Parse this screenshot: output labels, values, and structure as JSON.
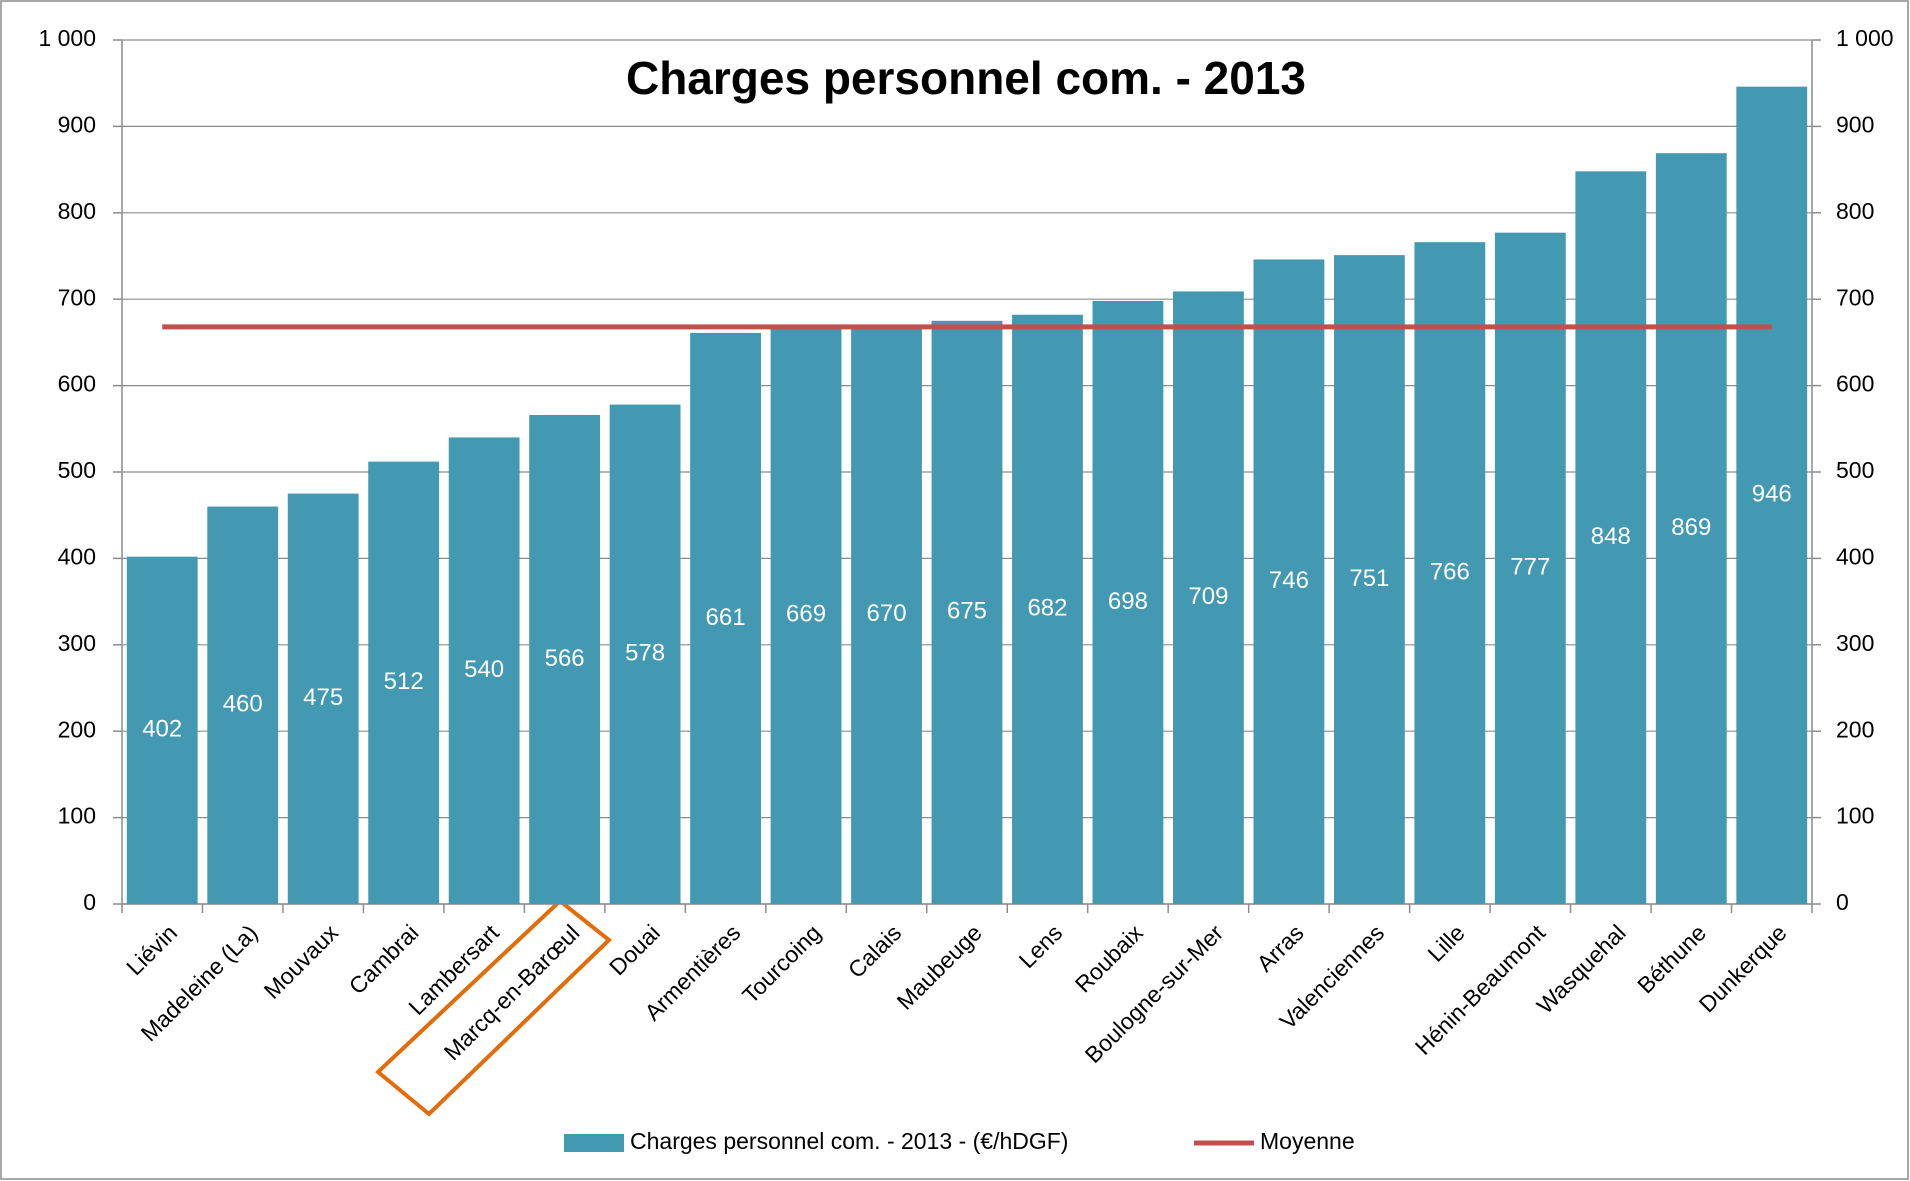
{
  "chart_data": {
    "type": "bar",
    "title": "Charges personnel com. - 2013",
    "categories": [
      "Liévin",
      "Madeleine (La)",
      "Mouvaux",
      "Cambrai",
      "Lambersart",
      "Marcq-en-Barœul",
      "Douai",
      "Armentières",
      "Tourcoing",
      "Calais",
      "Maubeuge",
      "Lens",
      "Roubaix",
      "Boulogne-sur-Mer",
      "Arras",
      "Valenciennes",
      "Lille",
      "Hénin-Beaumont",
      "Wasquehal",
      "Béthune",
      "Dunkerque"
    ],
    "series": [
      {
        "name": "Charges personnel com. - 2013 - (€/hDGF)",
        "type": "bar",
        "color": "#4399b1",
        "values": [
          402,
          460,
          475,
          512,
          540,
          566,
          578,
          661,
          669,
          670,
          675,
          682,
          698,
          709,
          746,
          751,
          766,
          777,
          848,
          869,
          946
        ]
      },
      {
        "name": "Moyenne",
        "type": "line",
        "color": "#c0504d",
        "values": [
          668,
          668,
          668,
          668,
          668,
          668,
          668,
          668,
          668,
          668,
          668,
          668,
          668,
          668,
          668,
          668,
          668,
          668,
          668,
          668,
          668
        ]
      }
    ],
    "ylim": [
      0,
      1000
    ],
    "yticks": [
      0,
      100,
      200,
      300,
      400,
      500,
      600,
      700,
      800,
      900,
      {
        "value": 1000,
        "label": "1 000"
      }
    ],
    "y2lim": [
      0,
      1000
    ],
    "y2ticks": [
      0,
      100,
      200,
      300,
      400,
      500,
      600,
      700,
      800,
      900,
      {
        "value": 1000,
        "label": "1 000"
      }
    ],
    "grid": true,
    "legend": "bottom"
  }
}
